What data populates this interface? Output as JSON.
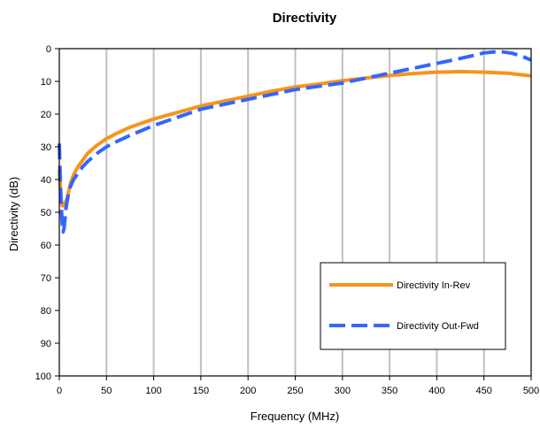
{
  "chart_data": {
    "type": "line",
    "title": "Directivity",
    "xlabel": "Frequency (MHz)",
    "ylabel": "Directivity (dB)",
    "xlim": [
      0,
      500
    ],
    "ylim": [
      0,
      100
    ],
    "y_inverted": true,
    "x_ticks": [
      0,
      50,
      100,
      150,
      200,
      250,
      300,
      350,
      400,
      450,
      500
    ],
    "y_ticks": [
      0,
      10,
      20,
      30,
      40,
      50,
      60,
      70,
      80,
      90,
      100
    ],
    "grid": "vertical",
    "legend_position": "bottom-right",
    "series": [
      {
        "name": "Directivity In-Rev",
        "color": "#F7941D",
        "dash": "solid",
        "x": [
          0,
          1,
          2,
          3,
          5,
          8,
          12,
          16,
          20,
          25,
          30,
          40,
          50,
          60,
          75,
          100,
          125,
          150,
          175,
          200,
          225,
          250,
          275,
          300,
          325,
          350,
          375,
          400,
          425,
          450,
          475,
          500
        ],
        "y": [
          37,
          42,
          46,
          48,
          48,
          46,
          41,
          38,
          36,
          34,
          32,
          29.5,
          27.5,
          26,
          24,
          21.5,
          19.5,
          17.5,
          16,
          14.5,
          13,
          11.7,
          10.8,
          9.8,
          9,
          8.2,
          7.6,
          7.2,
          7,
          7.2,
          7.5,
          8.3
        ]
      },
      {
        "name": "Directivity Out-Fwd",
        "color": "#3366FF",
        "dash": "dashed",
        "x": [
          0,
          1,
          2,
          3,
          4,
          5,
          6,
          7,
          8,
          10,
          12,
          15,
          20,
          25,
          30,
          40,
          50,
          60,
          75,
          100,
          125,
          150,
          175,
          200,
          225,
          250,
          275,
          300,
          325,
          350,
          375,
          400,
          425,
          440,
          450,
          460,
          470,
          480,
          490,
          500
        ],
        "y": [
          29,
          40,
          48,
          53,
          56,
          55,
          52,
          49,
          47,
          44,
          42,
          40,
          38,
          36,
          34.5,
          32,
          30,
          28.5,
          26.5,
          23.5,
          21,
          18.5,
          17,
          15.5,
          14,
          12.5,
          11.5,
          10.5,
          9,
          7.5,
          6,
          4.5,
          3,
          2,
          1.3,
          1,
          1,
          1.4,
          2.3,
          3.5
        ]
      }
    ]
  }
}
